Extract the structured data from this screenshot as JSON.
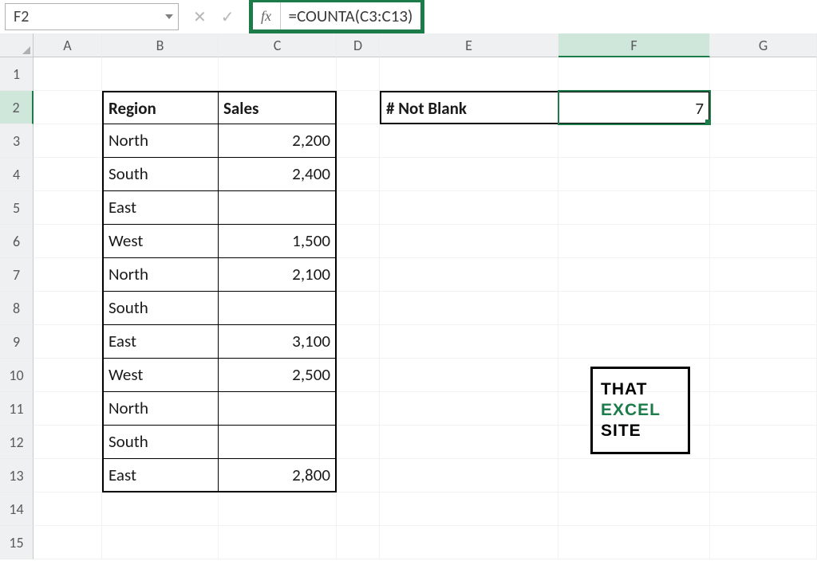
{
  "namebox": {
    "value": "F2"
  },
  "formula_bar": {
    "fx_label": "fx",
    "formula": "=COUNTA(C3:C13)"
  },
  "columns": {
    "labels": [
      "A",
      "B",
      "C",
      "D",
      "E",
      "F",
      "G"
    ],
    "widths": [
      86,
      146,
      148,
      54,
      224,
      190,
      134
    ],
    "active": "F"
  },
  "rows": {
    "count": 15,
    "active": 2
  },
  "table": {
    "headers": {
      "region": "Region",
      "sales": "Sales"
    },
    "data": [
      {
        "region": "North",
        "sales": "2,200"
      },
      {
        "region": "South",
        "sales": "2,400"
      },
      {
        "region": "East",
        "sales": ""
      },
      {
        "region": "West",
        "sales": "1,500"
      },
      {
        "region": "North",
        "sales": "2,100"
      },
      {
        "region": "South",
        "sales": ""
      },
      {
        "region": "East",
        "sales": "3,100"
      },
      {
        "region": "West",
        "sales": "2,500"
      },
      {
        "region": "North",
        "sales": ""
      },
      {
        "region": "South",
        "sales": ""
      },
      {
        "region": "East",
        "sales": "2,800"
      }
    ]
  },
  "summary": {
    "label": "# Not Blank",
    "value": "7"
  },
  "watermark": {
    "l1": "THAT",
    "l2": "EXCEL",
    "l3": "SITE"
  },
  "colors": {
    "accent": "#1b7c4a",
    "grid": "#f2f2f2",
    "header_bg": "#eef0f1"
  }
}
